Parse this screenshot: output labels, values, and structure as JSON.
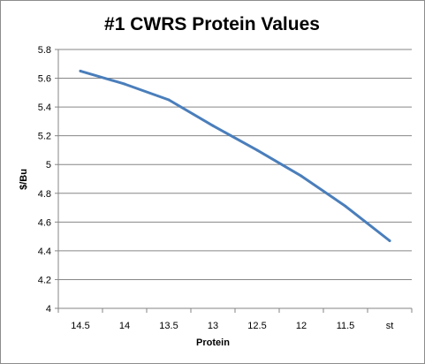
{
  "chart_data": {
    "type": "line",
    "title": "#1 CWRS Protein Values",
    "xlabel": "Protein",
    "ylabel": "$/Bu",
    "categories": [
      "14.5",
      "14",
      "13.5",
      "13",
      "12.5",
      "12",
      "11.5",
      "st"
    ],
    "series": [
      {
        "values": [
          5.65,
          5.56,
          5.45,
          5.27,
          5.1,
          4.92,
          4.71,
          4.47
        ]
      }
    ],
    "ylim": [
      4,
      5.8
    ],
    "yticks": [
      "4",
      "4.2",
      "4.4",
      "4.6",
      "4.8",
      "5",
      "5.2",
      "5.4",
      "5.6",
      "5.8"
    ],
    "grid": "horizontal",
    "legend": "none",
    "colors": {
      "line": "#4a7ebb",
      "grid": "#868686",
      "axis": "#868686"
    }
  }
}
